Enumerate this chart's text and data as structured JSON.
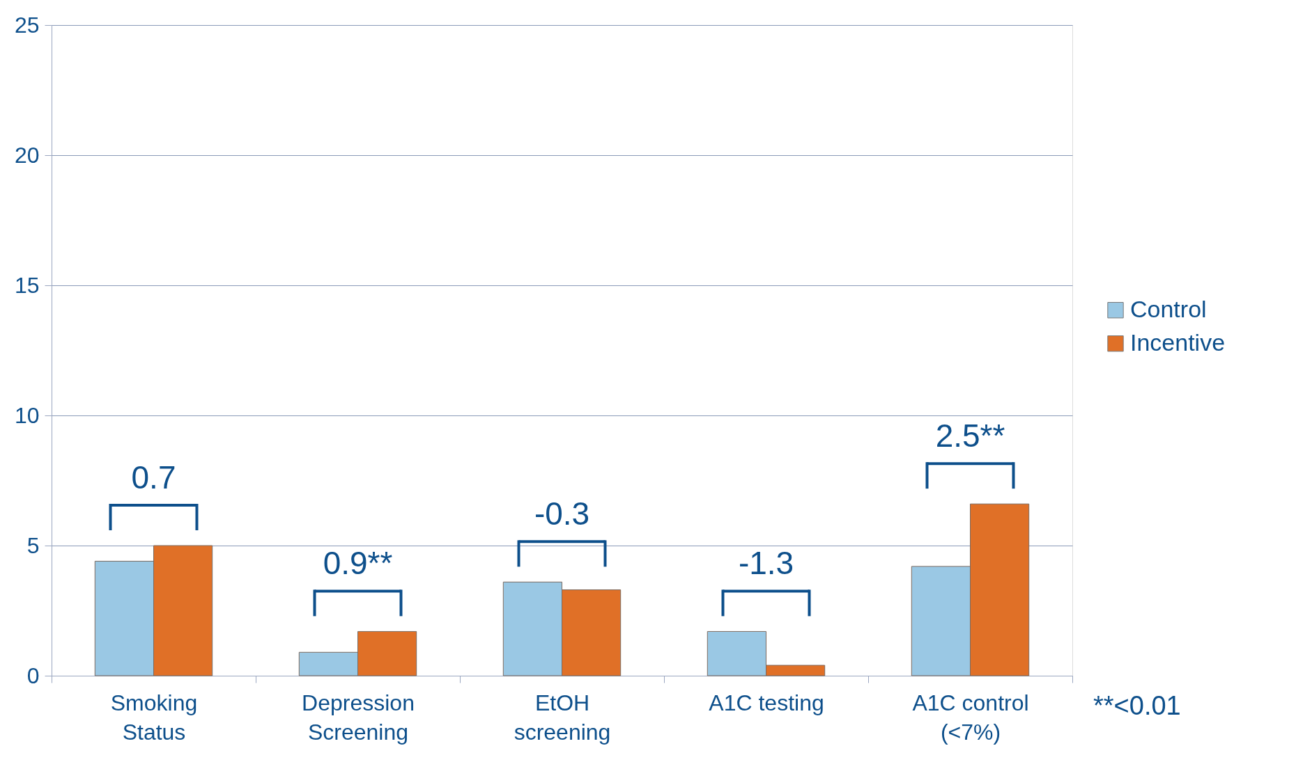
{
  "chart_data": {
    "type": "bar",
    "categories": [
      "Smoking Status",
      "Depression Screening",
      "EtOH screening",
      "A1C testing",
      "A1C control (<7%)"
    ],
    "series": [
      {
        "name": "Control",
        "color": "#9ac8e4",
        "values": [
          4.4,
          0.9,
          3.6,
          1.7,
          4.2
        ]
      },
      {
        "name": "Incentive",
        "color": "#e07027",
        "values": [
          5.0,
          1.7,
          3.3,
          0.4,
          6.6
        ]
      }
    ],
    "ylim": [
      0,
      25
    ],
    "yticks": [
      0,
      5,
      10,
      15,
      20,
      25
    ],
    "grid": "y",
    "legend": "right",
    "annotations": [
      "0.7",
      "0.9**",
      "-0.3",
      "-1.3",
      "2.5**",
      "**<0.01"
    ]
  }
}
